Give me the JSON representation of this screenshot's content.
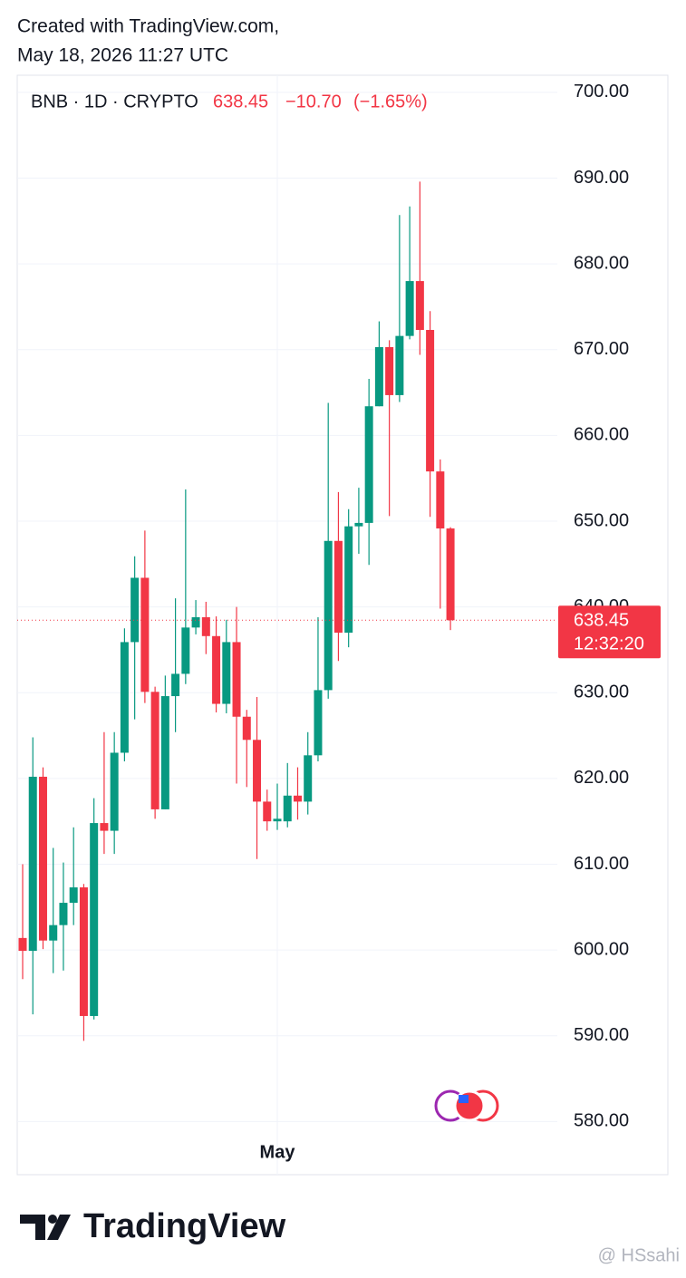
{
  "header": {
    "line1": "Created with TradingView.com,",
    "line2": "May 18, 2026 11:27 UTC"
  },
  "chart_data": {
    "type": "candlestick",
    "symbol": "BNB · 1D · CRYPTO",
    "last_price": 638.45,
    "change": {
      "value": -10.7,
      "label": "−10.70"
    },
    "change_pct": {
      "value": -1.65,
      "label": "(−1.65%)"
    },
    "countdown": "12:32:20",
    "up_color": "#089981",
    "down_color": "#f23645",
    "categories": [
      null,
      null,
      null,
      null,
      null,
      null,
      null,
      null,
      null,
      null,
      null,
      null,
      null,
      null,
      null,
      null,
      null,
      null,
      null,
      null,
      null,
      null,
      null,
      null,
      null,
      "May",
      null,
      null,
      null,
      null,
      null,
      null,
      null,
      null,
      null,
      null,
      null,
      null,
      null,
      null,
      null,
      null,
      null
    ],
    "open": [
      601.4,
      599.9,
      620.2,
      601.1,
      602.9,
      605.5,
      607.3,
      592.3,
      614.8,
      613.9,
      623.0,
      635.9,
      643.4,
      630.1,
      616.4,
      629.6,
      632.2,
      637.6,
      638.8,
      636.6,
      628.7,
      635.9,
      627.2,
      624.5,
      617.3,
      615.0,
      615.0,
      618.0,
      617.3,
      622.7,
      630.3,
      647.7,
      637.0,
      649.4,
      649.8,
      663.4,
      670.3,
      664.7,
      671.6,
      678.0,
      672.3,
      655.8,
      649.15
    ],
    "high": [
      610.0,
      624.8,
      621.3,
      611.9,
      610.2,
      614.3,
      607.7,
      617.7,
      625.4,
      625.4,
      637.5,
      645.9,
      648.9,
      630.7,
      632.0,
      641.0,
      653.7,
      640.8,
      640.6,
      638.9,
      638.5,
      640.0,
      628.0,
      629.5,
      618.7,
      619.4,
      621.8,
      621.3,
      625.4,
      638.8,
      663.8,
      653.4,
      651.4,
      653.9,
      666.6,
      673.3,
      671.1,
      685.7,
      686.7,
      689.6,
      674.5,
      657.2,
      649.3
    ],
    "low": [
      596.6,
      592.5,
      600.1,
      597.3,
      597.6,
      602.9,
      589.4,
      591.9,
      611.2,
      611.2,
      622.0,
      626.9,
      628.8,
      615.3,
      616.4,
      625.4,
      631.0,
      636.8,
      634.5,
      627.7,
      627.6,
      619.4,
      619.0,
      610.6,
      613.9,
      614.0,
      614.3,
      615.2,
      615.8,
      622.0,
      629.3,
      633.7,
      635.3,
      646.2,
      644.9,
      663.4,
      650.6,
      663.9,
      671.2,
      669.4,
      650.5,
      639.8,
      637.3
    ],
    "close": [
      599.9,
      620.2,
      601.1,
      602.9,
      605.5,
      607.3,
      592.3,
      614.8,
      613.9,
      623.0,
      635.9,
      643.4,
      630.1,
      616.4,
      629.6,
      632.2,
      637.6,
      638.8,
      636.6,
      628.7,
      635.9,
      627.2,
      624.5,
      617.3,
      615.0,
      615.3,
      618.0,
      617.3,
      622.7,
      630.3,
      647.7,
      637.0,
      649.4,
      649.8,
      663.4,
      670.3,
      664.7,
      671.6,
      678.0,
      672.3,
      655.8,
      649.15,
      638.45
    ],
    "ylim": [
      573.8,
      702.0
    ],
    "yticks": [
      {
        "value": 580,
        "label": "580.00"
      },
      {
        "value": 590,
        "label": "590.00"
      },
      {
        "value": 600,
        "label": "600.00"
      },
      {
        "value": 610,
        "label": "610.00"
      },
      {
        "value": 620,
        "label": "620.00"
      },
      {
        "value": 630,
        "label": "630.00"
      },
      {
        "value": 640,
        "label": "640.00"
      },
      {
        "value": 650,
        "label": "650.00"
      },
      {
        "value": 660,
        "label": "660.00"
      },
      {
        "value": 670,
        "label": "670.00"
      },
      {
        "value": 680,
        "label": "680.00"
      },
      {
        "value": 690,
        "label": "690.00"
      },
      {
        "value": 700,
        "label": "700.00"
      }
    ],
    "grid": true
  },
  "footer": {
    "brand": "TradingView",
    "watermark": "@ HSsahi"
  }
}
